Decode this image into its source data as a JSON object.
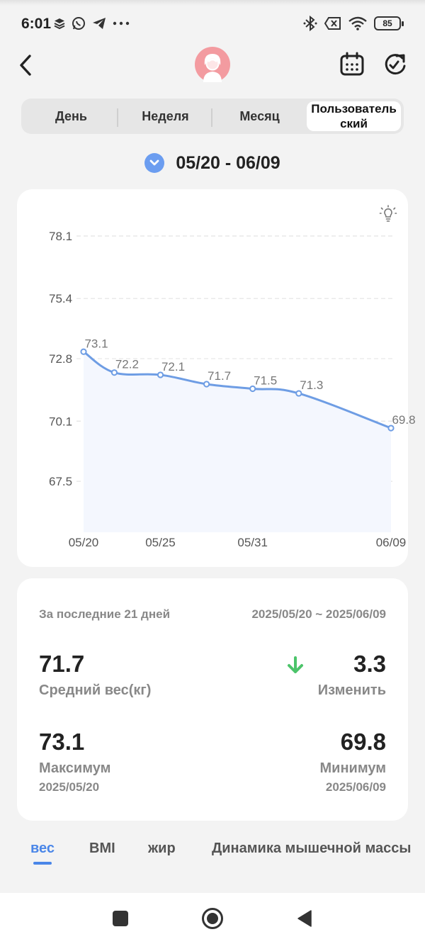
{
  "status_bar": {
    "time": "6:01",
    "battery": "85",
    "left_icons": [
      "layers-icon",
      "whatsapp-icon",
      "telegram-icon",
      "more-icon"
    ],
    "right_icons": [
      "bluetooth-icon",
      "sim-off-icon",
      "wifi-icon",
      "battery-icon"
    ]
  },
  "header": {
    "back_icon": "back-chevron-icon",
    "avatar_icon": "user-avatar-icon",
    "calendar_icon": "calendar-icon",
    "refresh_icon": "refresh-icon"
  },
  "tabs": [
    {
      "label": "День",
      "active": false
    },
    {
      "label": "Неделя",
      "active": false
    },
    {
      "label": "Месяц",
      "active": false
    },
    {
      "label": "Пользователь\nский",
      "active": true
    }
  ],
  "date_range": {
    "text": "05/20 - 06/09",
    "toggle_icon": "chevron-down-circle-icon"
  },
  "chart_data": {
    "type": "area",
    "x": [
      "05/20",
      "05/22",
      "05/25",
      "05/28",
      "05/31",
      "06/03",
      "06/09"
    ],
    "values": [
      73.1,
      72.2,
      72.1,
      71.7,
      71.5,
      71.3,
      69.8
    ],
    "x_tick_labels": [
      "05/20",
      "05/25",
      "05/31",
      "06/09"
    ],
    "y_ticks": [
      67.5,
      70.1,
      72.8,
      75.4,
      78.1
    ],
    "ylim": [
      65.3,
      78.1
    ],
    "grid": true,
    "line_color": "#6e9de4",
    "fill_color": "#f4f7fe"
  },
  "stats": {
    "period_label": "За последние 21 дней",
    "period_range": "2025/05/20 ~ 2025/06/09",
    "average_value": "71.7",
    "average_label": "Средний вес(кг)",
    "change_value": "3.3",
    "change_label": "Изменить",
    "change_icon": "arrow-down-icon",
    "change_color": "#4cc46a",
    "max_value": "73.1",
    "max_label": "Максимум",
    "max_date": "2025/05/20",
    "min_value": "69.8",
    "min_label": "Минимум",
    "min_date": "2025/06/09"
  },
  "metric_tabs": [
    {
      "label": "вес",
      "active": true
    },
    {
      "label": "BMI",
      "active": false
    },
    {
      "label": "жир",
      "active": false
    },
    {
      "label": "Динамика мышечной массы",
      "active": false
    }
  ],
  "nav": {
    "recents_icon": "square-icon",
    "home_icon": "circle-home-icon",
    "back_icon": "triangle-back-icon"
  },
  "colors": {
    "accent": "#4a86e8",
    "toggle_bg": "#6b9df0",
    "avatar_bg": "#f39ba0"
  }
}
